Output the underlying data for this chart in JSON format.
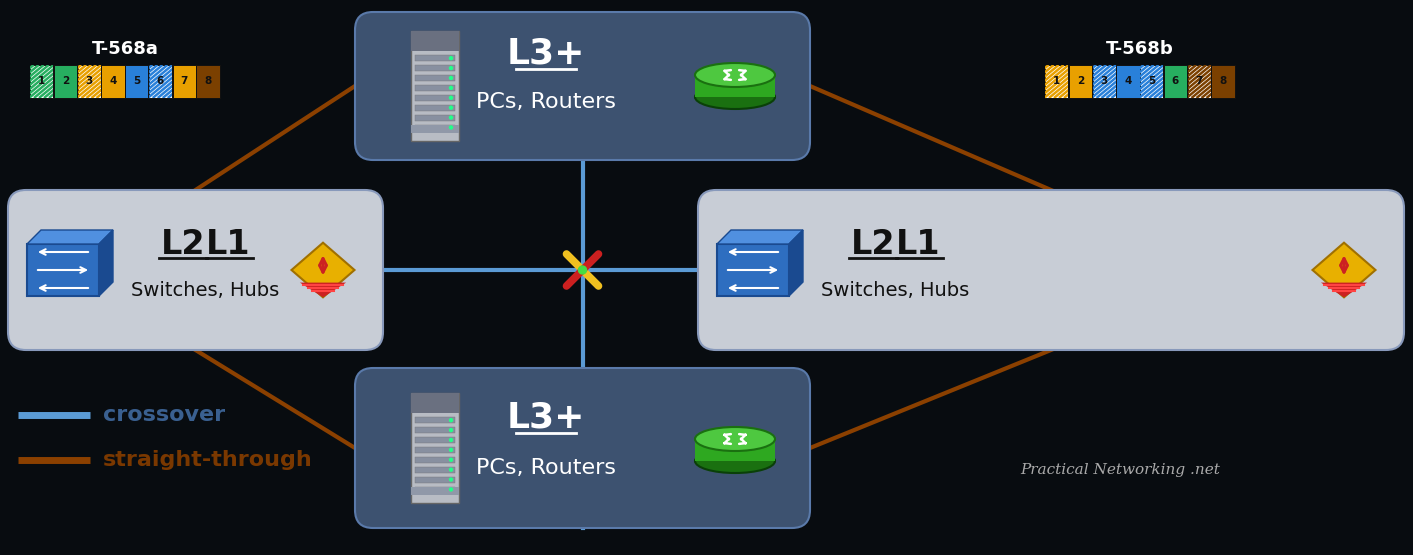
{
  "bg_color": "#080c10",
  "box_dark_color": "#3d5270",
  "box_dark_edge": "#5a7aaa",
  "box_light_color": "#c8cdd6",
  "box_light_edge": "#8899bb",
  "crossover_color": "#5b9bd5",
  "straight_color": "#8b4000",
  "title_568a": "T-568a",
  "title_568b": "T-568b",
  "legend_crossover": "crossover",
  "legend_straight": "straight-through",
  "watermark": "Practical Networking .net",
  "t568a_base": [
    "#ffffff",
    "#27ae60",
    "#ffffff",
    "#e8a000",
    "#2980d9",
    "#ffffff",
    "#e8a000",
    "#7b4000"
  ],
  "t568a_stripe": [
    "#27ae60",
    null,
    "#e8a000",
    null,
    null,
    "#2980d9",
    null,
    null
  ],
  "t568b_base": [
    "#ffffff",
    "#e8a000",
    "#ffffff",
    "#2980d9",
    "#ffffff",
    "#27ae60",
    "#ffffff",
    "#7b4000"
  ],
  "t568b_stripe": [
    "#e8a000",
    null,
    "#2980d9",
    null,
    "#2980d9",
    null,
    "#7b4000",
    null
  ],
  "crossover_label_color": "#3a6090",
  "straight_label_color": "#7a3800"
}
